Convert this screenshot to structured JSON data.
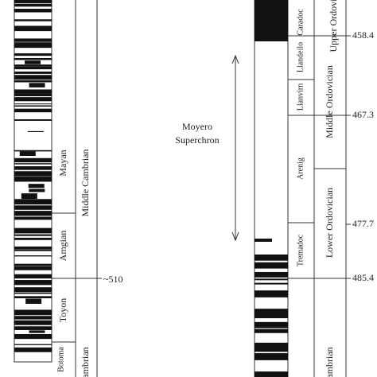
{
  "left_column": {
    "stages": [
      "Mayan",
      "Amgian",
      "Toyon",
      "Botoma"
    ],
    "series": [
      "Middle Cambrian",
      "Cambrian"
    ],
    "boundary_age": "~510"
  },
  "annotation": {
    "line1": "Moyero",
    "line2": "Superchron"
  },
  "right_column": {
    "stages": [
      "Caradoc",
      "Llandeilo",
      "Llanvirn",
      "Arenig",
      "Tremadoc"
    ],
    "series": [
      "Upper Ordovician",
      "Middle Ordovician",
      "Lower Ordovician",
      "Cambrian"
    ],
    "ages": [
      "458.4",
      "467.3",
      "477.7",
      "485.4"
    ]
  }
}
